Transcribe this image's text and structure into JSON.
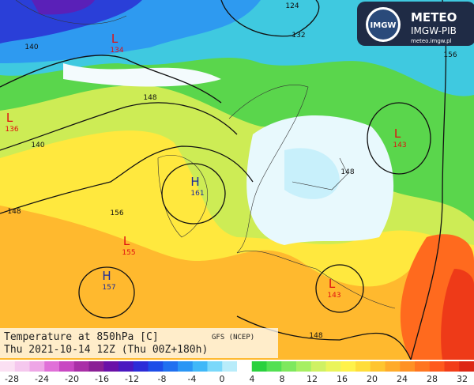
{
  "header": {
    "logo_badge": "IMGW",
    "brand": "METEO",
    "org": "IMGW-PIB",
    "url": "meteo.imgw.pl"
  },
  "caption": {
    "title": "Temperature at 850hPa [C]",
    "model": "GFS (NCEP)",
    "time": "Thu 2021-10-14 12Z (Thu 00Z+180h)"
  },
  "pressure_centers": [
    {
      "letter": "L",
      "value": "134"
    },
    {
      "letter": "L",
      "value": "136"
    },
    {
      "letter": "H",
      "value": "161"
    },
    {
      "letter": "L",
      "value": "155"
    },
    {
      "letter": "H",
      "value": "157"
    },
    {
      "letter": "L",
      "value": "143"
    },
    {
      "letter": "L",
      "value": "143"
    }
  ],
  "isobar_labels": [
    "140",
    "140",
    "148",
    "148",
    "156",
    "148",
    "132",
    "124",
    "156",
    "148"
  ],
  "colorbar": {
    "ticks": [
      "-28",
      "-24",
      "-20",
      "-16",
      "-12",
      "-8",
      "-4",
      "0",
      "4",
      "8",
      "12",
      "16",
      "20",
      "24",
      "28",
      "32"
    ],
    "colors": [
      "#fbe0f3",
      "#f5c8ee",
      "#eea6e6",
      "#e070d8",
      "#c848c2",
      "#a92fa7",
      "#8a1f95",
      "#6a10a8",
      "#4a18c0",
      "#2c2cd8",
      "#1d4de8",
      "#2070f0",
      "#2a96f5",
      "#40b8f8",
      "#7ad8fa",
      "#b8ecfa",
      "#ffffff",
      "#29d13e",
      "#52e052",
      "#7ee85e",
      "#a6ef62",
      "#cff163",
      "#eaf45a",
      "#fff24a",
      "#ffdd3a",
      "#ffc52f",
      "#ffab2a",
      "#ff9124",
      "#ff7520",
      "#ff5a1c",
      "#f23d18",
      "#dd2614"
    ]
  }
}
